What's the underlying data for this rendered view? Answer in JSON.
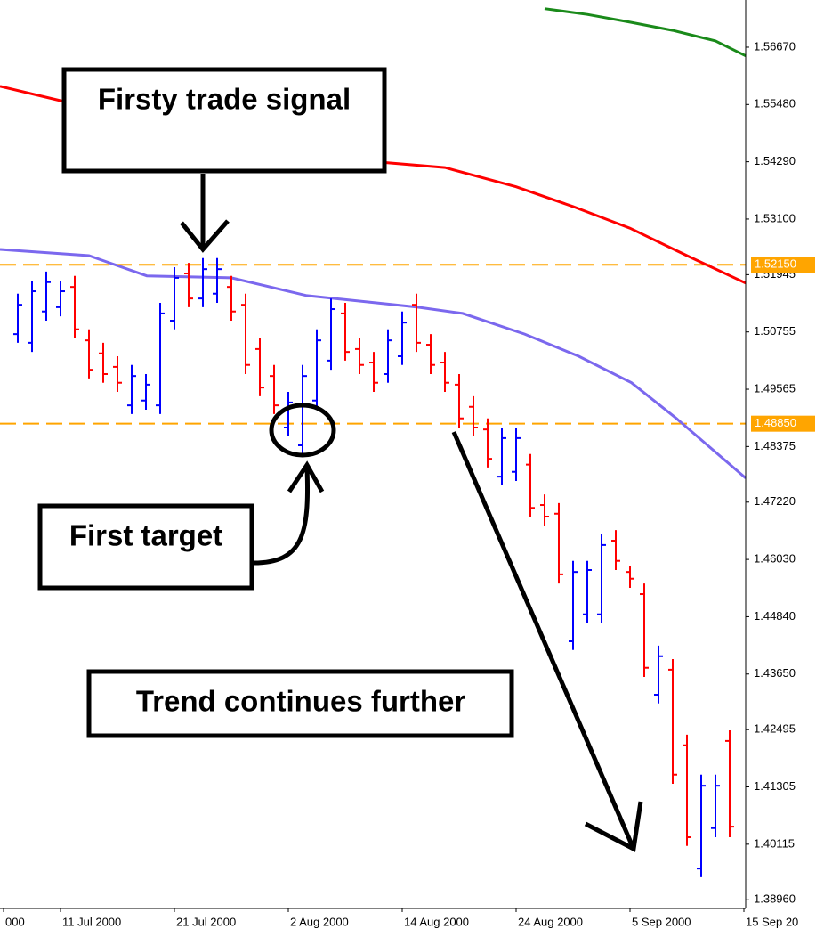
{
  "chart_data": {
    "type": "ohlc",
    "up_color": "#0000ff",
    "down_color": "#ff0000",
    "open": [
      1.5071,
      1.5053,
      1.5118,
      1.5127,
      1.5169,
      1.5058,
      1.5031,
      1.5003,
      1.4923,
      1.4933,
      1.4923,
      1.5099,
      1.5197,
      1.5145,
      1.5155,
      1.5169,
      1.5132,
      1.504,
      1.4984,
      1.4877,
      1.484,
      1.4933,
      1.5016,
      1.5114,
      1.504,
      1.5012,
      1.4988,
      1.5025,
      1.5132,
      1.5049,
      1.5012,
      1.4966,
      1.492,
      1.4873,
      1.4775,
      1.4785,
      1.48,
      1.4716,
      1.4698,
      1.4433,
      1.4489,
      1.4489,
      1.4642,
      1.4577,
      1.4531,
      1.4322,
      1.4374,
      1.4217,
      1.3961,
      1.4045,
      1.4226
    ],
    "high": [
      1.5155,
      1.5182,
      1.5201,
      1.5182,
      1.5192,
      1.5081,
      1.5053,
      1.5025,
      1.5007,
      1.4988,
      1.5136,
      1.521,
      1.5219,
      1.5229,
      1.5229,
      1.5192,
      1.5155,
      1.5062,
      1.5007,
      1.4951,
      1.5007,
      1.5081,
      1.5145,
      1.5136,
      1.5062,
      1.5034,
      1.5081,
      1.5118,
      1.5155,
      1.5071,
      1.5034,
      1.4988,
      1.4942,
      1.4896,
      1.4877,
      1.4877,
      1.4822,
      1.4738,
      1.472,
      1.46,
      1.46,
      1.4655,
      1.4664,
      1.459,
      1.4553,
      1.4424,
      1.4396,
      1.4239,
      1.4156,
      1.4156,
      1.4248
    ],
    "low": [
      1.5053,
      1.5034,
      1.5099,
      1.5108,
      1.5062,
      1.4979,
      1.497,
      1.4951,
      1.4905,
      1.4914,
      1.4905,
      1.5081,
      1.5127,
      1.5127,
      1.5136,
      1.5099,
      1.4988,
      1.4942,
      1.4905,
      1.4859,
      1.4822,
      1.4914,
      1.4997,
      1.5016,
      1.4988,
      1.4951,
      1.497,
      1.5007,
      1.5034,
      1.4988,
      1.4951,
      1.4877,
      1.4859,
      1.4794,
      1.4757,
      1.4766,
      1.4692,
      1.4673,
      1.4553,
      1.4415,
      1.447,
      1.447,
      1.4581,
      1.4544,
      1.4359,
      1.4304,
      1.4137,
      1.4008,
      1.3943,
      1.4026,
      1.4026
    ],
    "close": [
      1.5132,
      1.516,
      1.5179,
      1.516,
      1.5081,
      1.4997,
      1.4988,
      1.497,
      1.4984,
      1.4966,
      1.5114,
      1.5188,
      1.5145,
      1.5206,
      1.5206,
      1.5118,
      1.5007,
      1.496,
      1.4923,
      1.4929,
      1.4984,
      1.5058,
      1.5123,
      1.5034,
      1.5007,
      1.497,
      1.5058,
      1.5095,
      1.5053,
      1.5007,
      1.497,
      1.4896,
      1.4877,
      1.4812,
      1.4855,
      1.4855,
      1.471,
      1.4692,
      1.4572,
      1.4577,
      1.4581,
      1.4633,
      1.46,
      1.4563,
      1.4378,
      1.4402,
      1.4156,
      1.4026,
      1.4133,
      1.4133,
      1.4048
    ],
    "lines": [
      {
        "color": "#1a8a1a",
        "x": [
          37,
          40,
          43,
          46,
          49,
          51.125
        ],
        "values": [
          1.5747,
          1.5735,
          1.5719,
          1.5702,
          1.568,
          1.5649
        ]
      },
      {
        "color": "#ff0000",
        "x": [
          -1.25,
          3,
          10,
          18,
          25.6,
          30,
          35,
          39,
          43,
          47,
          51.125
        ],
        "values": [
          1.5586,
          1.5556,
          1.5515,
          1.5469,
          1.5428,
          1.5417,
          1.5377,
          1.5336,
          1.5291,
          1.5234,
          1.5177
        ]
      },
      {
        "color": "#7b68ee",
        "x": [
          -1.25,
          5,
          9.06,
          15,
          20.3,
          28.1,
          31.25,
          35.6,
          39.4,
          43.1,
          46.25,
          51.125
        ],
        "values": [
          1.5247,
          1.5234,
          1.5192,
          1.5188,
          1.5151,
          1.5127,
          1.5114,
          1.5071,
          1.5025,
          1.497,
          1.4896,
          1.4772
        ]
      }
    ],
    "levels": [
      {
        "value": 1.5215,
        "label": "1.52150",
        "color": "#ffa500"
      },
      {
        "value": 1.4885,
        "label": "1.48850",
        "color": "#ffa500"
      }
    ],
    "xlim": [
      -1.25,
      51.125
    ],
    "xticks": [
      {
        "value": -1,
        "label": "000"
      },
      {
        "value": 3,
        "label": "11 Jul 2000"
      },
      {
        "value": 11,
        "label": "21 Jul 2000"
      },
      {
        "value": 19,
        "label": "2 Aug 2000"
      },
      {
        "value": 27,
        "label": "14 Aug 2000"
      },
      {
        "value": 35,
        "label": "24 Aug 2000"
      },
      {
        "value": 43,
        "label": "5 Sep 2000"
      },
      {
        "value": 51,
        "label": "15 Sep 20"
      }
    ],
    "ylim": [
      1.3878,
      1.5765
    ],
    "yticks": [
      {
        "value": 1.5667,
        "label": "1.56670"
      },
      {
        "value": 1.5548,
        "label": "1.55480"
      },
      {
        "value": 1.5429,
        "label": "1.54290"
      },
      {
        "value": 1.531,
        "label": "1.53100"
      },
      {
        "value": 1.51945,
        "label": "1.51945"
      },
      {
        "value": 1.50755,
        "label": "1.50755"
      },
      {
        "value": 1.49565,
        "label": "1.49565"
      },
      {
        "value": 1.48375,
        "label": "1.48375"
      },
      {
        "value": 1.4722,
        "label": "1.47220"
      },
      {
        "value": 1.4603,
        "label": "1.46030"
      },
      {
        "value": 1.4484,
        "label": "1.44840"
      },
      {
        "value": 1.4365,
        "label": "1.43650"
      },
      {
        "value": 1.42495,
        "label": "1.42495"
      },
      {
        "value": 1.41305,
        "label": "1.41305"
      },
      {
        "value": 1.40115,
        "label": "1.40115"
      },
      {
        "value": 1.3896,
        "label": "1.38960"
      }
    ],
    "annotations": [
      "Firsty trade signal",
      "First target",
      "Trend continues further"
    ]
  }
}
